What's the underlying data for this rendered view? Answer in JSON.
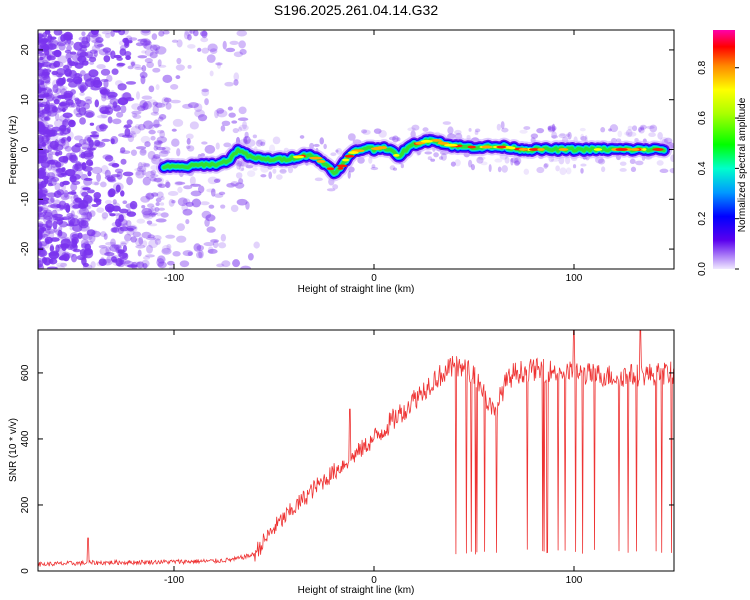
{
  "title": "S196.2025.261.04.14.G32",
  "colors": {
    "snr_line": "#ee3333",
    "speckle": "#7a33ee",
    "axis": "#000000"
  },
  "chart_data": [
    {
      "type": "heatmap",
      "name": "spectrogram",
      "xlabel": "Height of straight line (km)",
      "ylabel": "Frequency (Hz)",
      "xlim": [
        -168,
        150
      ],
      "ylim": [
        -24,
        24
      ],
      "xticks": [
        -100,
        0,
        100
      ],
      "yticks": [
        -20,
        -10,
        0,
        10,
        20
      ],
      "xtick_labels": [
        "-100",
        "0",
        "100"
      ],
      "ytick_labels": [
        "-20",
        "-10",
        "0",
        "10",
        "20"
      ],
      "colorbar": {
        "label": "Normalized spectral amplitude",
        "range": [
          0.0,
          0.95
        ],
        "ticks": [
          0.0,
          0.2,
          0.4,
          0.6,
          0.8
        ],
        "tick_labels": [
          "0.0",
          "0.2",
          "0.4",
          "0.6",
          "0.8"
        ]
      },
      "ridge": {
        "x": [
          -105,
          -95,
          -85,
          -78,
          -72,
          -68,
          -62,
          -55,
          -45,
          -38,
          -32,
          -28,
          -24,
          -20,
          -17,
          -14,
          -10,
          -6,
          -3,
          0,
          4,
          8,
          12,
          16,
          20,
          25,
          30,
          36,
          45,
          55,
          65,
          75,
          85,
          95,
          105,
          115,
          125,
          135,
          145
        ],
        "y": [
          -3.5,
          -3.5,
          -3,
          -3,
          -2,
          0,
          -1.5,
          -2,
          -2,
          -1.5,
          -1,
          -2,
          -3,
          -4.5,
          -4,
          -2,
          -0.5,
          0,
          0.5,
          0,
          0.5,
          0,
          -1.5,
          0,
          1,
          1.5,
          2,
          1,
          0.5,
          0.5,
          0.5,
          0,
          0,
          0,
          0,
          0,
          0,
          0,
          0
        ]
      }
    },
    {
      "type": "line",
      "name": "snr",
      "xlabel": "Height of straight line (km)",
      "ylabel": "SNR (10 * v/v)",
      "xlim": [
        -168,
        150
      ],
      "ylim": [
        0,
        730
      ],
      "xticks": [
        -100,
        0,
        100
      ],
      "yticks": [
        0,
        200,
        400,
        600
      ],
      "xtick_labels": [
        "-100",
        "0",
        "100"
      ],
      "ytick_labels": [
        "0",
        "200",
        "400",
        "600"
      ],
      "envelope": {
        "x": [
          -168,
          -140,
          -100,
          -80,
          -70,
          -60,
          -50,
          -40,
          -30,
          -20,
          -10,
          0,
          10,
          20,
          30,
          40,
          50,
          55,
          60,
          65,
          70,
          80,
          100,
          120,
          150
        ],
        "y": [
          20,
          25,
          28,
          30,
          35,
          50,
          130,
          190,
          250,
          300,
          350,
          400,
          460,
          520,
          580,
          620,
          600,
          540,
          470,
          560,
          600,
          610,
          600,
          590,
          600
        ]
      },
      "spikes": [
        {
          "x": -143,
          "y": 100
        },
        {
          "x": -12,
          "y": 490
        },
        {
          "x": 100,
          "y": 730
        },
        {
          "x": 133,
          "y": 730
        }
      ]
    }
  ]
}
